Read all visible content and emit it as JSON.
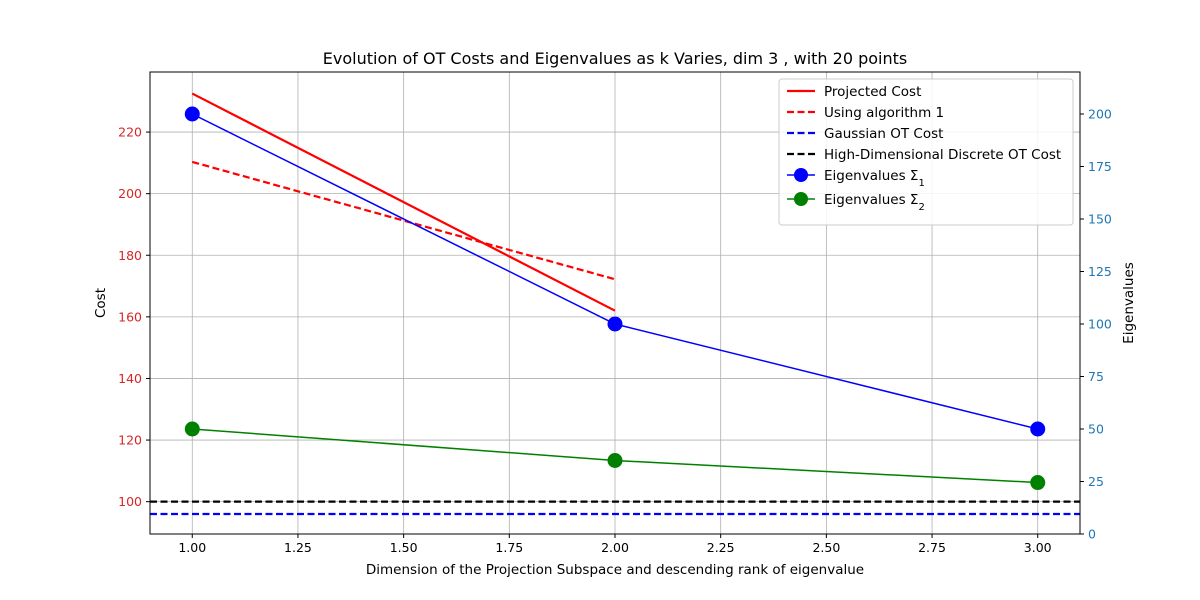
{
  "chart_data": {
    "type": "line",
    "title": "Evolution of OT Costs and Eigenvalues as k Varies, dim 3 , with 20 points",
    "xlabel": "Dimension of the Projection Subspace and descending rank of eigenvalue",
    "ylabel_left": "Cost",
    "ylabel_right": "Eigenvalues",
    "xlim": [
      0.9,
      3.1
    ],
    "ylim_left": [
      89.5,
      239.5
    ],
    "ylim_right": [
      0,
      220
    ],
    "x_ticks": [
      1.0,
      1.25,
      1.5,
      1.75,
      2.0,
      2.25,
      2.5,
      2.75,
      3.0
    ],
    "x_tick_labels": [
      "1.00",
      "1.25",
      "1.50",
      "1.75",
      "2.00",
      "2.25",
      "2.50",
      "2.75",
      "3.00"
    ],
    "y_left_ticks": [
      100,
      120,
      140,
      160,
      180,
      200,
      220
    ],
    "y_left_tick_labels": [
      "100",
      "120",
      "140",
      "160",
      "180",
      "200",
      "220"
    ],
    "y_right_ticks": [
      0,
      25,
      50,
      75,
      100,
      125,
      150,
      175,
      200
    ],
    "y_right_tick_labels": [
      "0",
      "25",
      "50",
      "75",
      "100",
      "125",
      "150",
      "175",
      "200"
    ],
    "grid": true,
    "legend_position": "top-right",
    "left_axis_color": "#d62728",
    "right_axis_color": "#1f77b4",
    "series": [
      {
        "name": "Projected Cost",
        "axis": "left",
        "color": "#ff0000",
        "style": "solid",
        "x": [
          1,
          2
        ],
        "values": [
          232.5,
          162
        ]
      },
      {
        "name": "Using algorithm 1",
        "axis": "left",
        "color": "#ff0000",
        "style": "dashed",
        "x": [
          1,
          2
        ],
        "values": [
          210.3,
          172.2
        ]
      },
      {
        "name": "Gaussian OT Cost",
        "axis": "left",
        "color": "#0000ff",
        "style": "dashed",
        "hline": 96
      },
      {
        "name": "High-Dimensional Discrete OT Cost",
        "axis": "left",
        "color": "#000000",
        "style": "dashed",
        "hline": 100
      },
      {
        "name": "Eigenvalues Σ",
        "name_sub": "1",
        "axis": "right",
        "color": "#0000ff",
        "style": "solid",
        "marker": "circle",
        "x": [
          1,
          2,
          3
        ],
        "values": [
          200,
          100,
          50
        ]
      },
      {
        "name": "Eigenvalues Σ",
        "name_sub": "2",
        "axis": "right",
        "color": "#008000",
        "style": "solid",
        "marker": "circle",
        "x": [
          1,
          2,
          3
        ],
        "values": [
          50,
          35,
          24.5
        ]
      }
    ]
  }
}
